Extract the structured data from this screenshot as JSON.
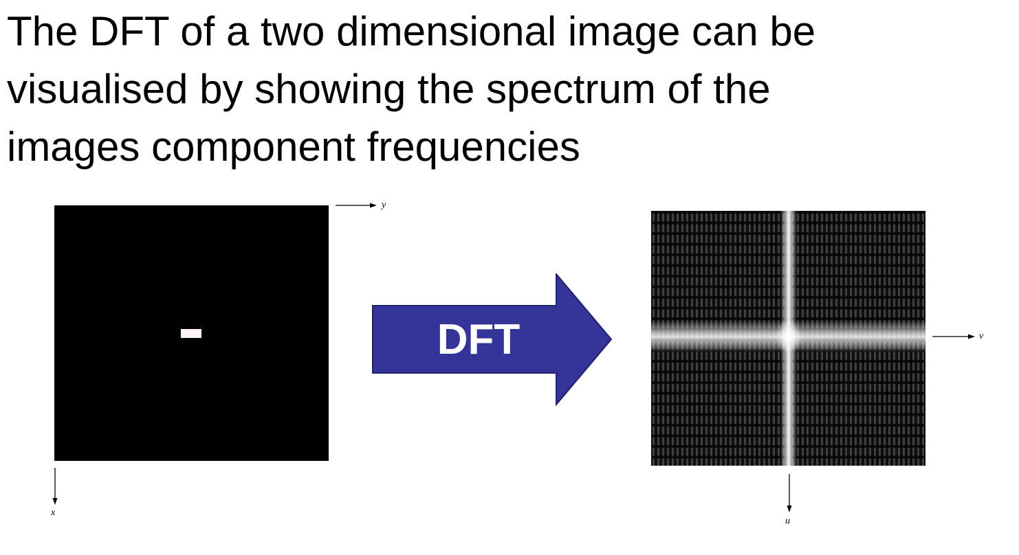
{
  "heading": {
    "lines": [
      "The DFT of a two dimensional image can be",
      "visualised by showing the spectrum of the",
      "images component frequencies"
    ]
  },
  "spatial_image": {
    "background_color": "#000000",
    "object_color": "#fff4fb",
    "axis_horizontal_label": "y",
    "axis_vertical_label": "x"
  },
  "arrow": {
    "label": "DFT",
    "fill_color": "#333399",
    "stroke_color": "#222266"
  },
  "spectrum_image": {
    "axis_horizontal_label": "v",
    "axis_vertical_label": "u"
  }
}
